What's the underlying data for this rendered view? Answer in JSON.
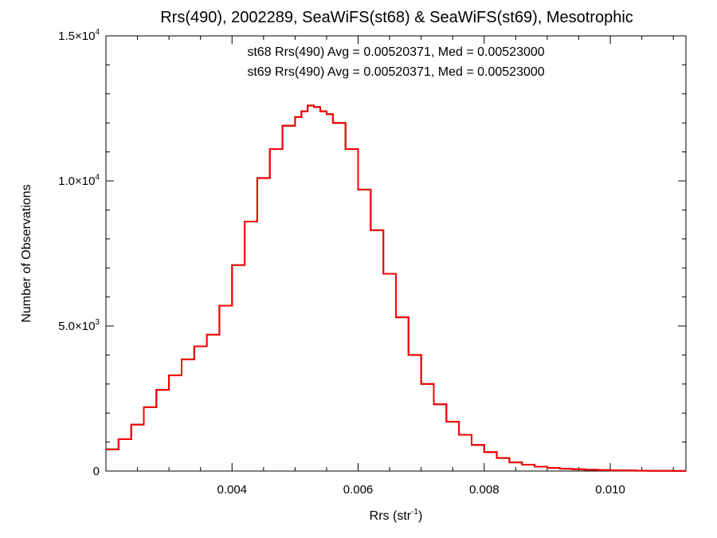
{
  "chart_data": {
    "type": "line",
    "title": "Rrs(490), 2002289, SeaWiFS(st68) & SeaWiFS(st69), Mesotrophic",
    "xlabel": "Rrs (str",
    "xlabel_sup": "-1",
    "xlabel_close": ")",
    "ylabel": "Number of Observations",
    "xlim": [
      0.002,
      0.0112
    ],
    "ylim": [
      0,
      15000
    ],
    "x_ticks": [
      {
        "v": 0.004,
        "label": "0.004"
      },
      {
        "v": 0.006,
        "label": "0.006"
      },
      {
        "v": 0.008,
        "label": "0.008"
      },
      {
        "v": 0.01,
        "label": "0.010"
      }
    ],
    "y_ticks": [
      {
        "v": 0,
        "label": "0",
        "sup": ""
      },
      {
        "v": 5000,
        "label": "5.0×10",
        "sup": "3"
      },
      {
        "v": 10000,
        "label": "1.0×10",
        "sup": "4"
      },
      {
        "v": 15000,
        "label": "1.5×10",
        "sup": "4"
      }
    ],
    "annotations": [
      {
        "text": "st68 Rrs(490) Avg = 0.00520371, Med = 0.00523000",
        "color": "#000000"
      },
      {
        "text": "st69 Rrs(490) Avg = 0.00520371, Med = 0.00523000",
        "color": "#ff0000"
      }
    ],
    "series": [
      {
        "color": "#000000",
        "x": [
          0.002,
          0.0022,
          0.0024,
          0.0026,
          0.0028,
          0.003,
          0.0032,
          0.0034,
          0.0036,
          0.0038,
          0.004,
          0.0042,
          0.0044,
          0.0046,
          0.0048,
          0.005,
          0.0051,
          0.0052,
          0.0053,
          0.0054,
          0.0055,
          0.0056,
          0.0058,
          0.006,
          0.0062,
          0.0064,
          0.0066,
          0.0068,
          0.007,
          0.0072,
          0.0074,
          0.0076,
          0.0078,
          0.008,
          0.0082,
          0.0084,
          0.0086,
          0.0088,
          0.009,
          0.0092,
          0.0094,
          0.0096,
          0.0098,
          0.01,
          0.0102,
          0.0104,
          0.0106,
          0.0108,
          0.011,
          0.0112
        ],
        "y": [
          750,
          1100,
          1600,
          2200,
          2800,
          3300,
          3850,
          4300,
          4700,
          5700,
          7100,
          8600,
          10100,
          11100,
          11900,
          12200,
          12400,
          12600,
          12550,
          12400,
          12300,
          12000,
          11100,
          9700,
          8300,
          6800,
          5300,
          4000,
          3000,
          2300,
          1700,
          1250,
          900,
          650,
          450,
          300,
          220,
          150,
          110,
          80,
          60,
          45,
          35,
          25,
          18,
          12,
          8,
          6,
          4,
          3
        ]
      },
      {
        "color": "#ff0000",
        "x": [
          0.002,
          0.0022,
          0.0024,
          0.0026,
          0.0028,
          0.003,
          0.0032,
          0.0034,
          0.0036,
          0.0038,
          0.004,
          0.0042,
          0.0044,
          0.0046,
          0.0048,
          0.005,
          0.0051,
          0.0052,
          0.0053,
          0.0054,
          0.0055,
          0.0056,
          0.0058,
          0.006,
          0.0062,
          0.0064,
          0.0066,
          0.0068,
          0.007,
          0.0072,
          0.0074,
          0.0076,
          0.0078,
          0.008,
          0.0082,
          0.0084,
          0.0086,
          0.0088,
          0.009,
          0.0092,
          0.0094,
          0.0096,
          0.0098,
          0.01,
          0.0102,
          0.0104,
          0.0106,
          0.0108,
          0.011,
          0.0112
        ],
        "y": [
          750,
          1100,
          1600,
          2200,
          2800,
          3300,
          3850,
          4300,
          4700,
          5700,
          7100,
          8600,
          10100,
          11100,
          11900,
          12200,
          12400,
          12600,
          12550,
          12400,
          12300,
          12000,
          11100,
          9700,
          8300,
          6800,
          5300,
          4000,
          3000,
          2300,
          1700,
          1250,
          900,
          650,
          450,
          300,
          220,
          150,
          110,
          80,
          60,
          45,
          35,
          25,
          18,
          12,
          8,
          6,
          4,
          3
        ]
      }
    ]
  }
}
